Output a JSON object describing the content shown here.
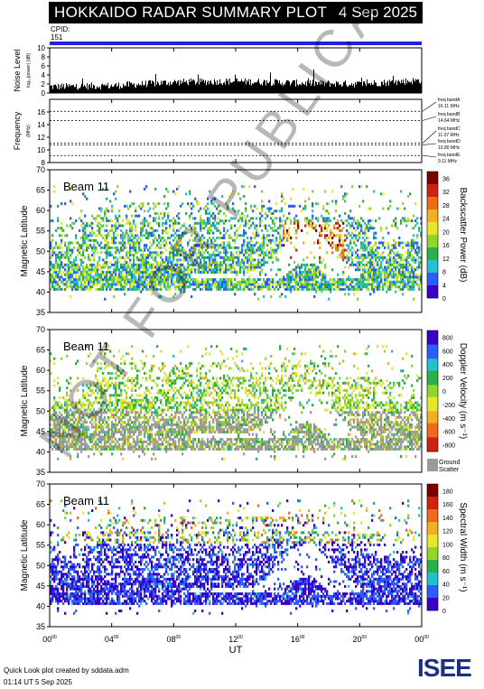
{
  "header": {
    "title": "HOKKAIDO RADAR SUMMARY PLOT",
    "date": "4 Sep 2025"
  },
  "cpid": {
    "label": "CPID:",
    "value": "151"
  },
  "noise_panel": {
    "ylabel": "Noise Level",
    "ylabel_sub": "log₁₀(power) [dB]"
  },
  "frequency_panel": {
    "ylabel": "Frequency",
    "unit": "(MHz)",
    "bands": [
      {
        "label": "freq bandA",
        "value": "16.11 MHz"
      },
      {
        "label": "freq bandB",
        "value": "14.64 MHz"
      },
      {
        "label": "freq bandC",
        "value": "11.07 MHz"
      },
      {
        "label": "freq bandD",
        "value": "10.80 MHz"
      },
      {
        "label": "freq bandE",
        "value": "9.11 MHz"
      }
    ]
  },
  "panels": [
    {
      "beam": "Beam 11",
      "ylabel": "Magnetic Latitude",
      "cbar_label": "Backscatter Power (dB)"
    },
    {
      "beam": "Beam 11",
      "ylabel": "Magnetic Latitude",
      "cbar_label": "Doppler Velocity (m s⁻¹)",
      "ground_label": "Ground Scatter"
    },
    {
      "beam": "Beam 11",
      "ylabel": "Magnetic Latitude",
      "cbar_label": "Spectral Width (m s⁻¹)"
    }
  ],
  "xlabel": "UT",
  "footer": {
    "line1": "Quick Look plot created by sddata.adm",
    "line2": "01:14 UT  5 Sep 2025"
  },
  "logo": "ISEE",
  "watermark": "NOT FOR PUBLICATION",
  "colors": {
    "title_bg": "#000000",
    "cpid_bar": "#2020e0",
    "ground": "#9a9a9a"
  },
  "chart_data": [
    {
      "type": "bar",
      "name": "noise",
      "x_range": [
        0,
        24
      ],
      "ylim": [
        0,
        10
      ],
      "yticks": [
        "0",
        "2",
        "4",
        "6",
        "8",
        "10"
      ],
      "profile": [
        {
          "x": 0,
          "y": 1.4
        },
        {
          "x": 4,
          "y": 1.6
        },
        {
          "x": 8,
          "y": 2.4
        },
        {
          "x": 12,
          "y": 2.6
        },
        {
          "x": 16,
          "y": 2.2
        },
        {
          "x": 20,
          "y": 2.0
        },
        {
          "x": 24,
          "y": 2.8
        }
      ]
    },
    {
      "type": "line",
      "name": "frequency",
      "x_range": [
        0,
        24
      ],
      "ylim": [
        8,
        18
      ],
      "yticks": [
        "8",
        "10",
        "12",
        "14",
        "16"
      ],
      "bands_mhz": [
        16.11,
        14.64,
        11.07,
        10.8,
        9.11
      ]
    },
    {
      "type": "heatmap",
      "name": "power",
      "ylim": [
        35,
        70
      ],
      "yticks": [
        "35",
        "40",
        "45",
        "50",
        "55",
        "60",
        "65",
        "70"
      ],
      "cbar_ticks": [
        "0",
        "4",
        "8",
        "12",
        "16",
        "20",
        "24",
        "28",
        "32",
        "36"
      ],
      "cbar_range": [
        0,
        38
      ]
    },
    {
      "type": "heatmap",
      "name": "velocity",
      "ylim": [
        35,
        70
      ],
      "yticks": [
        "35",
        "40",
        "45",
        "50",
        "55",
        "60",
        "65",
        "70"
      ],
      "cbar_ticks": [
        "-800",
        "-600",
        "-400",
        "-200",
        "0",
        "200",
        "400",
        "600",
        "800"
      ],
      "cbar_range": [
        -900,
        900
      ]
    },
    {
      "type": "heatmap",
      "name": "width",
      "ylim": [
        35,
        70
      ],
      "yticks": [
        "35",
        "40",
        "45",
        "50",
        "55",
        "60",
        "65",
        "70"
      ],
      "cbar_ticks": [
        "0",
        "20",
        "40",
        "60",
        "80",
        "100",
        "120",
        "140",
        "160",
        "180"
      ],
      "cbar_range": [
        0,
        190
      ]
    },
    {
      "type": "axis",
      "name": "time",
      "x_range": [
        0,
        24
      ],
      "xtick_hours": [
        "00",
        "04",
        "08",
        "12",
        "16",
        "20",
        "00"
      ],
      "xtick_minutes": "00"
    }
  ]
}
